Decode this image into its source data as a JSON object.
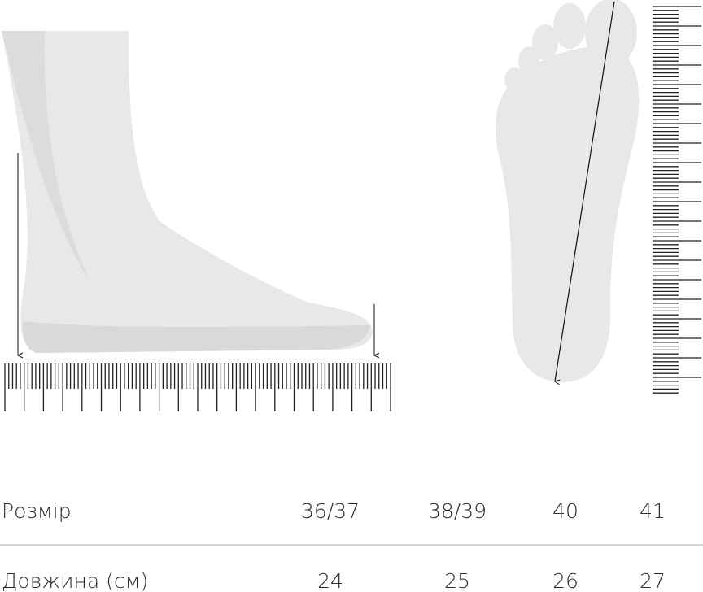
{
  "table": {
    "rows": [
      [
        "Розмір",
        "36/37",
        "38/39",
        "40",
        "41"
      ],
      [
        "Довжина (см)",
        24,
        25,
        26,
        27
      ]
    ]
  }
}
